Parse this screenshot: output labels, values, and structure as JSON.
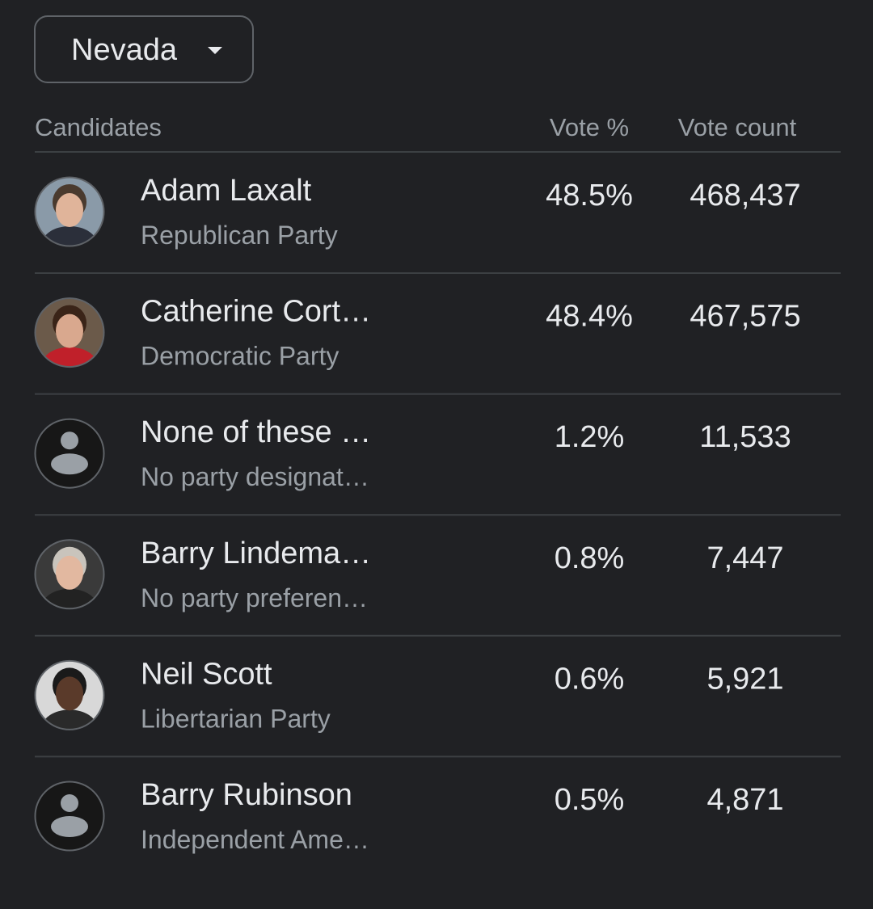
{
  "dropdown": {
    "label": "Nevada"
  },
  "table": {
    "headers": [
      "Candidates",
      "Vote %",
      "Vote count"
    ],
    "rows": [
      {
        "name": "Adam Laxalt",
        "party": "Republican Party",
        "vote_pct": "48.5%",
        "vote_count": "468,437"
      },
      {
        "name": "Catherine Cort…",
        "party": "Democratic Party",
        "vote_pct": "48.4%",
        "vote_count": "467,575"
      },
      {
        "name": "None of these …",
        "party": "No party designat…",
        "vote_pct": "1.2%",
        "vote_count": "11,533"
      },
      {
        "name": "Barry Lindema…",
        "party": "No party preferen…",
        "vote_pct": "0.8%",
        "vote_count": "7,447"
      },
      {
        "name": "Neil Scott",
        "party": "Libertarian Party",
        "vote_pct": "0.6%",
        "vote_count": "5,921"
      },
      {
        "name": "Barry Rubinson",
        "party": "Independent Ame…",
        "vote_pct": "0.5%",
        "vote_count": "4,871"
      }
    ]
  }
}
